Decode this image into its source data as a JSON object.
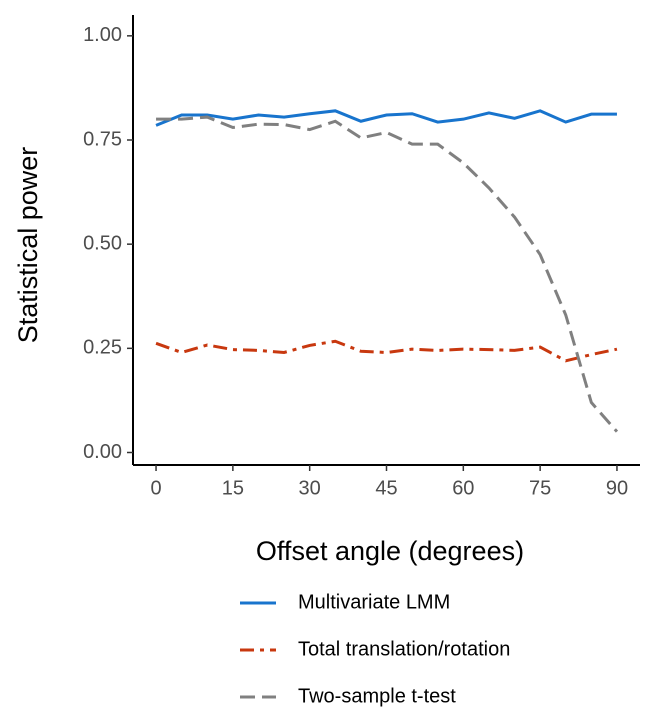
{
  "chart_data": {
    "type": "line",
    "x_label": "Offset angle (degrees)",
    "y_label": "Statistical power",
    "x": [
      0,
      5,
      10,
      15,
      20,
      25,
      30,
      35,
      40,
      45,
      50,
      55,
      60,
      65,
      70,
      75,
      80,
      85,
      90
    ],
    "series": [
      {
        "name": "Multivariate LMM",
        "color": "#1874cd",
        "dash": "none",
        "values": [
          0.785,
          0.81,
          0.81,
          0.8,
          0.81,
          0.805,
          0.813,
          0.82,
          0.795,
          0.81,
          0.813,
          0.793,
          0.8,
          0.815,
          0.802,
          0.82,
          0.793,
          0.812,
          0.812
        ]
      },
      {
        "name": "Total translation/rotation",
        "color": "#c8380f",
        "dash": "14,6,4,6",
        "values": [
          0.262,
          0.24,
          0.258,
          0.247,
          0.245,
          0.24,
          0.257,
          0.267,
          0.243,
          0.24,
          0.248,
          0.245,
          0.248,
          0.247,
          0.245,
          0.253,
          0.22,
          0.235,
          0.248
        ]
      },
      {
        "name": "Two-sample t-test",
        "color": "#808080",
        "dash": "15,7",
        "values": [
          0.8,
          0.8,
          0.805,
          0.78,
          0.788,
          0.787,
          0.775,
          0.795,
          0.755,
          0.768,
          0.74,
          0.74,
          0.695,
          0.635,
          0.565,
          0.475,
          0.33,
          0.12,
          0.05
        ]
      }
    ],
    "xlim": [
      -4.5,
      94.5
    ],
    "xticks": [
      0,
      15,
      30,
      45,
      60,
      75,
      90
    ],
    "ylim": [
      -0.03,
      1.05
    ],
    "yticks": [
      {
        "value": 0,
        "label": "0.00"
      },
      {
        "value": 0.25,
        "label": "0.25"
      },
      {
        "value": 0.5,
        "label": "0.50"
      },
      {
        "value": 0.75,
        "label": "0.75"
      },
      {
        "value": 1,
        "label": "1.00"
      }
    ],
    "legend": "bottom",
    "grid": false
  }
}
